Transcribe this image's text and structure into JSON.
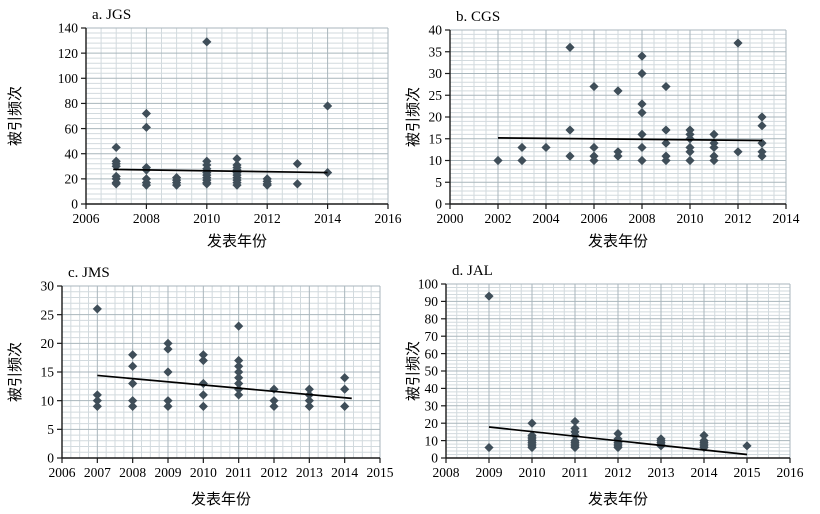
{
  "figure": {
    "panels_count": 4,
    "colors": {
      "marker": "#3f4e59",
      "trend": "#000000",
      "grid_minor": "#d2dade",
      "grid_major": "#a9b6bc",
      "axis": "#1a1a1a",
      "text": "#000000",
      "background": "#ffffff"
    }
  },
  "chart_data": [
    {
      "id": "a",
      "type": "scatter",
      "title": "a. JGS",
      "xlabel": "发表年份",
      "ylabel": "被引频次",
      "xlim": [
        2006,
        2016
      ],
      "ylim": [
        0,
        140
      ],
      "xticks": [
        2006,
        2008,
        2010,
        2012,
        2014,
        2016
      ],
      "yticks": [
        0,
        20,
        40,
        60,
        80,
        100,
        120,
        140
      ],
      "x_minor": 0.5,
      "y_minor": 4,
      "grid": true,
      "legend": false,
      "points": [
        [
          2007,
          45
        ],
        [
          2007,
          34
        ],
        [
          2007,
          32
        ],
        [
          2007,
          30
        ],
        [
          2007,
          22
        ],
        [
          2007,
          20
        ],
        [
          2007,
          17
        ],
        [
          2007,
          16
        ],
        [
          2008,
          72
        ],
        [
          2008,
          61
        ],
        [
          2008,
          29
        ],
        [
          2008,
          27
        ],
        [
          2008,
          20
        ],
        [
          2008,
          17
        ],
        [
          2008,
          15
        ],
        [
          2009,
          21
        ],
        [
          2009,
          19
        ],
        [
          2009,
          17
        ],
        [
          2009,
          15
        ],
        [
          2010,
          129
        ],
        [
          2010,
          34
        ],
        [
          2010,
          31
        ],
        [
          2010,
          28
        ],
        [
          2010,
          25
        ],
        [
          2010,
          23
        ],
        [
          2010,
          21
        ],
        [
          2010,
          19
        ],
        [
          2010,
          17
        ],
        [
          2010,
          16
        ],
        [
          2011,
          36
        ],
        [
          2011,
          31
        ],
        [
          2011,
          29
        ],
        [
          2011,
          27
        ],
        [
          2011,
          25
        ],
        [
          2011,
          23
        ],
        [
          2011,
          21
        ],
        [
          2011,
          19
        ],
        [
          2011,
          17
        ],
        [
          2011,
          15
        ],
        [
          2012,
          20
        ],
        [
          2012,
          18
        ],
        [
          2012,
          16
        ],
        [
          2012,
          15
        ],
        [
          2013,
          32
        ],
        [
          2013,
          16
        ],
        [
          2014,
          78
        ],
        [
          2014,
          25
        ]
      ],
      "trend": [
        [
          2006.9,
          27.5
        ],
        [
          2014,
          25
        ]
      ]
    },
    {
      "id": "b",
      "type": "scatter",
      "title": "b. CGS",
      "xlabel": "发表年份",
      "ylabel": "被引频次",
      "xlim": [
        2000,
        2014
      ],
      "ylim": [
        0,
        40
      ],
      "xticks": [
        2000,
        2002,
        2004,
        2006,
        2008,
        2010,
        2012,
        2014
      ],
      "yticks": [
        0,
        5,
        10,
        15,
        20,
        25,
        30,
        35,
        40
      ],
      "x_minor": 0.5,
      "y_minor": 1,
      "grid": true,
      "legend": false,
      "points": [
        [
          2002,
          10
        ],
        [
          2003,
          13
        ],
        [
          2003,
          10
        ],
        [
          2004,
          13
        ],
        [
          2005,
          36
        ],
        [
          2005,
          17
        ],
        [
          2005,
          11
        ],
        [
          2006,
          27
        ],
        [
          2006,
          13
        ],
        [
          2006,
          11
        ],
        [
          2006,
          10
        ],
        [
          2007,
          26
        ],
        [
          2007,
          12
        ],
        [
          2007,
          11
        ],
        [
          2008,
          34
        ],
        [
          2008,
          30
        ],
        [
          2008,
          23
        ],
        [
          2008,
          21
        ],
        [
          2008,
          16
        ],
        [
          2008,
          13
        ],
        [
          2008,
          10
        ],
        [
          2009,
          27
        ],
        [
          2009,
          17
        ],
        [
          2009,
          14
        ],
        [
          2009,
          11
        ],
        [
          2009,
          10
        ],
        [
          2010,
          17
        ],
        [
          2010,
          16
        ],
        [
          2010,
          15
        ],
        [
          2010,
          13
        ],
        [
          2010,
          12
        ],
        [
          2010,
          10
        ],
        [
          2011,
          16
        ],
        [
          2011,
          14
        ],
        [
          2011,
          13
        ],
        [
          2011,
          11
        ],
        [
          2011,
          10
        ],
        [
          2012,
          37
        ],
        [
          2012,
          12
        ],
        [
          2013,
          20
        ],
        [
          2013,
          18
        ],
        [
          2013,
          14
        ],
        [
          2013,
          12
        ],
        [
          2013,
          11
        ]
      ],
      "trend": [
        [
          2002,
          15.2
        ],
        [
          2013,
          14.6
        ]
      ]
    },
    {
      "id": "c",
      "type": "scatter",
      "title": "c. JMS",
      "xlabel": "发表年份",
      "ylabel": "被引频次",
      "xlim": [
        2006,
        2015
      ],
      "ylim": [
        0,
        30
      ],
      "xticks": [
        2006,
        2007,
        2008,
        2009,
        2010,
        2011,
        2012,
        2013,
        2014,
        2015
      ],
      "yticks": [
        0,
        5,
        10,
        15,
        20,
        25,
        30
      ],
      "x_minor": 0.25,
      "y_minor": 1,
      "grid": true,
      "legend": false,
      "points": [
        [
          2007,
          26
        ],
        [
          2007,
          11
        ],
        [
          2007,
          10
        ],
        [
          2007,
          9
        ],
        [
          2008,
          18
        ],
        [
          2008,
          16
        ],
        [
          2008,
          13
        ],
        [
          2008,
          10
        ],
        [
          2008,
          9
        ],
        [
          2009,
          20
        ],
        [
          2009,
          19
        ],
        [
          2009,
          15
        ],
        [
          2009,
          10
        ],
        [
          2009,
          9
        ],
        [
          2010,
          18
        ],
        [
          2010,
          17
        ],
        [
          2010,
          13
        ],
        [
          2010,
          11
        ],
        [
          2010,
          9
        ],
        [
          2011,
          23
        ],
        [
          2011,
          17
        ],
        [
          2011,
          16
        ],
        [
          2011,
          15
        ],
        [
          2011,
          14
        ],
        [
          2011,
          13
        ],
        [
          2011,
          12
        ],
        [
          2011,
          11
        ],
        [
          2012,
          12
        ],
        [
          2012,
          10
        ],
        [
          2012,
          9
        ],
        [
          2013,
          12
        ],
        [
          2013,
          11
        ],
        [
          2013,
          10
        ],
        [
          2013,
          9
        ],
        [
          2014,
          14
        ],
        [
          2014,
          12
        ],
        [
          2014,
          9
        ]
      ],
      "trend": [
        [
          2007,
          14.4
        ],
        [
          2014.2,
          10.4
        ]
      ]
    },
    {
      "id": "d",
      "type": "scatter",
      "title": "d. JAL",
      "xlabel": "发表年份",
      "ylabel": "被引频次",
      "xlim": [
        2008,
        2016
      ],
      "ylim": [
        0,
        100
      ],
      "xticks": [
        2008,
        2009,
        2010,
        2011,
        2012,
        2013,
        2014,
        2015,
        2016
      ],
      "yticks": [
        0,
        10,
        20,
        30,
        40,
        50,
        60,
        70,
        80,
        90,
        100
      ],
      "x_minor": 0.25,
      "y_minor": 2,
      "grid": true,
      "legend": false,
      "points": [
        [
          2009,
          93
        ],
        [
          2009,
          6
        ],
        [
          2010,
          20
        ],
        [
          2010,
          13
        ],
        [
          2010,
          12
        ],
        [
          2010,
          11
        ],
        [
          2010,
          10
        ],
        [
          2010,
          9
        ],
        [
          2010,
          8
        ],
        [
          2010,
          7
        ],
        [
          2010,
          6
        ],
        [
          2011,
          21
        ],
        [
          2011,
          17
        ],
        [
          2011,
          15
        ],
        [
          2011,
          13
        ],
        [
          2011,
          10
        ],
        [
          2011,
          9
        ],
        [
          2011,
          8
        ],
        [
          2011,
          7
        ],
        [
          2011,
          6
        ],
        [
          2012,
          14
        ],
        [
          2012,
          11
        ],
        [
          2012,
          9
        ],
        [
          2012,
          8
        ],
        [
          2012,
          7
        ],
        [
          2012,
          6
        ],
        [
          2013,
          11
        ],
        [
          2013,
          10
        ],
        [
          2013,
          9
        ],
        [
          2013,
          8
        ],
        [
          2013,
          7
        ],
        [
          2014,
          13
        ],
        [
          2014,
          10
        ],
        [
          2014,
          9
        ],
        [
          2014,
          8
        ],
        [
          2014,
          7
        ],
        [
          2014,
          6
        ],
        [
          2015,
          7
        ]
      ],
      "trend": [
        [
          2009,
          17.8
        ],
        [
          2015,
          2
        ]
      ]
    }
  ]
}
